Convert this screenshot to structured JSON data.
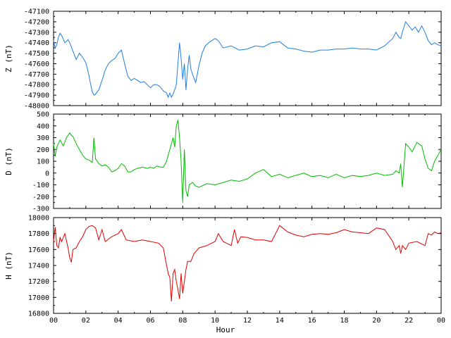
{
  "chart_data": {
    "type": "line",
    "xlabel": "Hour",
    "xlim": [
      0,
      24
    ],
    "x_ticks": [
      "00",
      "02",
      "04",
      "06",
      "08",
      "10",
      "12",
      "14",
      "16",
      "18",
      "20",
      "22",
      "00"
    ],
    "panels": [
      {
        "ylabel": "Z (nT)",
        "color": "#1f7fe0",
        "ylim": [
          -48000,
          -47100
        ],
        "yticks": [
          -47100,
          -47200,
          -47300,
          -47400,
          -47500,
          -47600,
          -47700,
          -47800,
          -47900,
          -48000
        ],
        "x": [
          0,
          0.1,
          0.2,
          0.3,
          0.4,
          0.5,
          0.7,
          0.9,
          1,
          1.2,
          1.4,
          1.6,
          1.8,
          2,
          2.1,
          2.2,
          2.3,
          2.4,
          2.5,
          2.6,
          2.8,
          3,
          3.2,
          3.4,
          3.6,
          3.8,
          4,
          4.2,
          4.4,
          4.6,
          4.8,
          5,
          5.2,
          5.4,
          5.6,
          5.8,
          6,
          6.2,
          6.4,
          6.6,
          6.8,
          7,
          7.1,
          7.2,
          7.3,
          7.4,
          7.5,
          7.6,
          7.7,
          7.8,
          7.9,
          8,
          8.1,
          8.2,
          8.3,
          8.4,
          8.5,
          8.6,
          8.8,
          9,
          9.2,
          9.4,
          9.6,
          9.8,
          10,
          10.2,
          10.5,
          11,
          11.5,
          12,
          12.5,
          13,
          13.5,
          14,
          14.5,
          15,
          15.5,
          16,
          16.5,
          17,
          17.5,
          18,
          18.5,
          19,
          19.5,
          20,
          20.5,
          21,
          21.2,
          21.4,
          21.5,
          21.6,
          21.8,
          22,
          22.2,
          22.4,
          22.6,
          22.8,
          23,
          23.2,
          23.4,
          23.6,
          23.8,
          24
        ],
        "y": [
          -47380,
          -47450,
          -47420,
          -47350,
          -47310,
          -47330,
          -47400,
          -47370,
          -47400,
          -47480,
          -47560,
          -47500,
          -47540,
          -47590,
          -47650,
          -47720,
          -47800,
          -47870,
          -47900,
          -47890,
          -47850,
          -47760,
          -47660,
          -47600,
          -47570,
          -47550,
          -47500,
          -47470,
          -47600,
          -47720,
          -47760,
          -47740,
          -47760,
          -47780,
          -47770,
          -47800,
          -47830,
          -47800,
          -47800,
          -47820,
          -47860,
          -47880,
          -47920,
          -47880,
          -47920,
          -47890,
          -47850,
          -47800,
          -47600,
          -47400,
          -47550,
          -47750,
          -47600,
          -47850,
          -47650,
          -47520,
          -47650,
          -47700,
          -47780,
          -47620,
          -47500,
          -47430,
          -47400,
          -47380,
          -47360,
          -47380,
          -47450,
          -47430,
          -47470,
          -47460,
          -47430,
          -47440,
          -47400,
          -47390,
          -47450,
          -47460,
          -47480,
          -47490,
          -47470,
          -47470,
          -47460,
          -47460,
          -47450,
          -47460,
          -47460,
          -47470,
          -47430,
          -47360,
          -47300,
          -47350,
          -47360,
          -47300,
          -47200,
          -47240,
          -47280,
          -47250,
          -47300,
          -47240,
          -47300,
          -47380,
          -47420,
          -47400,
          -47420,
          -47430
        ]
      },
      {
        "ylabel": "D (nT)",
        "color": "#00bb00",
        "ylim": [
          -300,
          500
        ],
        "yticks": [
          500,
          400,
          300,
          200,
          100,
          0,
          -100,
          -200,
          -300
        ],
        "x": [
          0,
          0.1,
          0.2,
          0.4,
          0.6,
          0.8,
          1,
          1.1,
          1.2,
          1.4,
          1.6,
          1.8,
          2,
          2.2,
          2.4,
          2.5,
          2.6,
          2.8,
          3,
          3.2,
          3.4,
          3.6,
          3.8,
          4,
          4.2,
          4.4,
          4.6,
          4.8,
          5,
          5.2,
          5.5,
          5.8,
          6,
          6.2,
          6.4,
          6.6,
          6.8,
          7,
          7.2,
          7.4,
          7.5,
          7.6,
          7.7,
          7.8,
          7.9,
          8,
          8.1,
          8.2,
          8.3,
          8.4,
          8.6,
          8.8,
          9,
          9.5,
          10,
          10.5,
          11,
          11.5,
          12,
          12.5,
          13,
          13.5,
          14,
          14.5,
          15,
          15.5,
          16,
          16.5,
          17,
          17.5,
          18,
          18.5,
          19,
          19.5,
          20,
          20.5,
          21,
          21.2,
          21.4,
          21.5,
          21.6,
          21.8,
          22,
          22.2,
          22.5,
          22.8,
          23,
          23.2,
          23.4,
          23.6,
          23.8,
          24
        ],
        "y": [
          250,
          140,
          220,
          280,
          230,
          300,
          340,
          320,
          310,
          250,
          200,
          150,
          120,
          110,
          90,
          300,
          120,
          80,
          60,
          70,
          50,
          10,
          20,
          40,
          80,
          60,
          10,
          10,
          30,
          40,
          50,
          40,
          50,
          40,
          60,
          50,
          50,
          100,
          200,
          300,
          220,
          400,
          450,
          300,
          100,
          -250,
          200,
          -150,
          -200,
          -100,
          -80,
          -110,
          -120,
          -90,
          -100,
          -80,
          -60,
          -70,
          -50,
          0,
          30,
          -30,
          -10,
          -40,
          -20,
          0,
          -30,
          -20,
          -40,
          -10,
          -40,
          -20,
          -30,
          -20,
          0,
          -20,
          -10,
          20,
          0,
          80,
          -120,
          250,
          220,
          180,
          260,
          230,
          120,
          40,
          20,
          100,
          150,
          200
        ]
      },
      {
        "ylabel": "H (nT)",
        "color": "#e00000",
        "ylim": [
          16800,
          18000
        ],
        "yticks": [
          18000,
          17800,
          17600,
          17400,
          17200,
          17000,
          16800
        ],
        "x": [
          0,
          0.1,
          0.2,
          0.3,
          0.4,
          0.5,
          0.7,
          0.9,
          1,
          1.1,
          1.2,
          1.4,
          1.6,
          1.8,
          2,
          2.2,
          2.4,
          2.6,
          2.8,
          3,
          3.2,
          3.4,
          3.6,
          3.8,
          4,
          4.2,
          4.5,
          5,
          5.5,
          6,
          6.5,
          6.8,
          7,
          7.1,
          7.2,
          7.3,
          7.4,
          7.5,
          7.6,
          7.7,
          7.8,
          7.9,
          8,
          8.1,
          8.2,
          8.3,
          8.5,
          8.7,
          9,
          9.5,
          10,
          10.2,
          10.5,
          11,
          11.2,
          11.4,
          11.6,
          12,
          12.5,
          13,
          13.5,
          14,
          14.5,
          15,
          15.5,
          16,
          16.5,
          17,
          17.5,
          18,
          18.5,
          19,
          19.5,
          20,
          20.5,
          21,
          21.2,
          21.4,
          21.5,
          21.6,
          21.8,
          22,
          22.5,
          23,
          23.2,
          23.4,
          23.6,
          23.8,
          24
        ],
        "y": [
          17700,
          17880,
          17650,
          17620,
          17750,
          17700,
          17800,
          17620,
          17500,
          17440,
          17600,
          17620,
          17700,
          17760,
          17850,
          17890,
          17900,
          17870,
          17720,
          17850,
          17700,
          17730,
          17760,
          17780,
          17800,
          17850,
          17720,
          17700,
          17720,
          17700,
          17680,
          17620,
          17400,
          17300,
          17250,
          16950,
          17300,
          17350,
          17200,
          17100,
          16980,
          17300,
          17050,
          17200,
          17350,
          17450,
          17450,
          17550,
          17620,
          17650,
          17700,
          17800,
          17700,
          17650,
          17850,
          17680,
          17760,
          17750,
          17720,
          17720,
          17700,
          17900,
          17820,
          17780,
          17760,
          17790,
          17800,
          17790,
          17810,
          17850,
          17820,
          17810,
          17800,
          17870,
          17850,
          17700,
          17600,
          17650,
          17550,
          17650,
          17600,
          17680,
          17700,
          17650,
          17800,
          17780,
          17820,
          17800,
          17810
        ]
      }
    ]
  }
}
